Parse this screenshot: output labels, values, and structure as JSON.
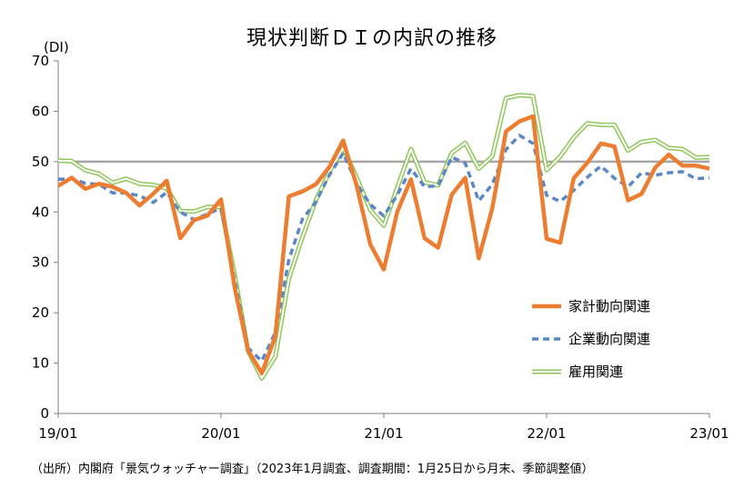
{
  "chart_data": {
    "type": "line",
    "title": "現状判断ＤＩの内訳の推移",
    "ylabel": "(DI)",
    "xlabel": "",
    "ylim": [
      0,
      70
    ],
    "yticks": [
      0,
      10,
      20,
      30,
      40,
      50,
      60,
      70
    ],
    "xticks": [
      "19/01",
      "20/01",
      "21/01",
      "22/01",
      "23/01"
    ],
    "reference_line": 50,
    "legend_position": "right-middle",
    "months": 49,
    "series": [
      {
        "name": "家計動向関連",
        "color": "#ED7D31",
        "style": "solid",
        "values": [
          45.2,
          46.8,
          44.6,
          45.6,
          45.0,
          43.8,
          41.3,
          43.6,
          46.2,
          34.8,
          38.4,
          39.3,
          42.5,
          25.1,
          12.5,
          8.0,
          15.3,
          43.1,
          44.1,
          45.5,
          49.0,
          54.2,
          45.2,
          33.6,
          28.6,
          40.1,
          46.5,
          34.8,
          32.9,
          43.4,
          46.8,
          30.8,
          40.8,
          56.0,
          58.0,
          59.0,
          34.7,
          33.9,
          46.7,
          49.8,
          53.6,
          53.0,
          42.3,
          43.6,
          48.8,
          51.4,
          49.2,
          49.2,
          48.6
        ]
      },
      {
        "name": "企業動向関連",
        "color": "#5B87C7",
        "style": "dashed",
        "values": [
          46.5,
          46.6,
          45.7,
          45.5,
          43.8,
          43.8,
          43.2,
          41.9,
          43.9,
          40.0,
          38.5,
          39.6,
          40.8,
          26.5,
          13.0,
          10.4,
          16.1,
          30.5,
          38.6,
          42.0,
          47.4,
          51.7,
          45.6,
          41.5,
          39.2,
          43.4,
          48.6,
          45.0,
          45.2,
          50.9,
          49.7,
          42.2,
          45.5,
          52.4,
          55.2,
          53.6,
          43.3,
          42.1,
          44.3,
          46.9,
          49.1,
          46.7,
          45.0,
          47.8,
          47.3,
          47.8,
          48.0,
          46.6,
          46.8
        ]
      },
      {
        "name": "雇用関連",
        "color": "#8FC75A",
        "style": "double",
        "values": [
          50.2,
          50.1,
          48.3,
          47.6,
          45.8,
          46.6,
          45.6,
          45.4,
          44.7,
          40.2,
          40.1,
          41.0,
          41.0,
          27.6,
          12.4,
          7.0,
          11.3,
          26.8,
          35.0,
          42.4,
          48.0,
          52.7,
          46.8,
          40.4,
          37.3,
          44.9,
          52.5,
          45.9,
          45.3,
          51.7,
          53.7,
          48.6,
          51.1,
          62.6,
          63.2,
          63.0,
          48.3,
          51.0,
          54.8,
          57.6,
          57.3,
          57.3,
          52.2,
          53.9,
          54.3,
          52.7,
          52.5,
          50.8,
          50.9
        ]
      }
    ]
  },
  "source_note": "（出所）内閣府「景気ウォッチャー調査」（2023年1月調査、調査期間：1月25日から月末、季節調整値）"
}
